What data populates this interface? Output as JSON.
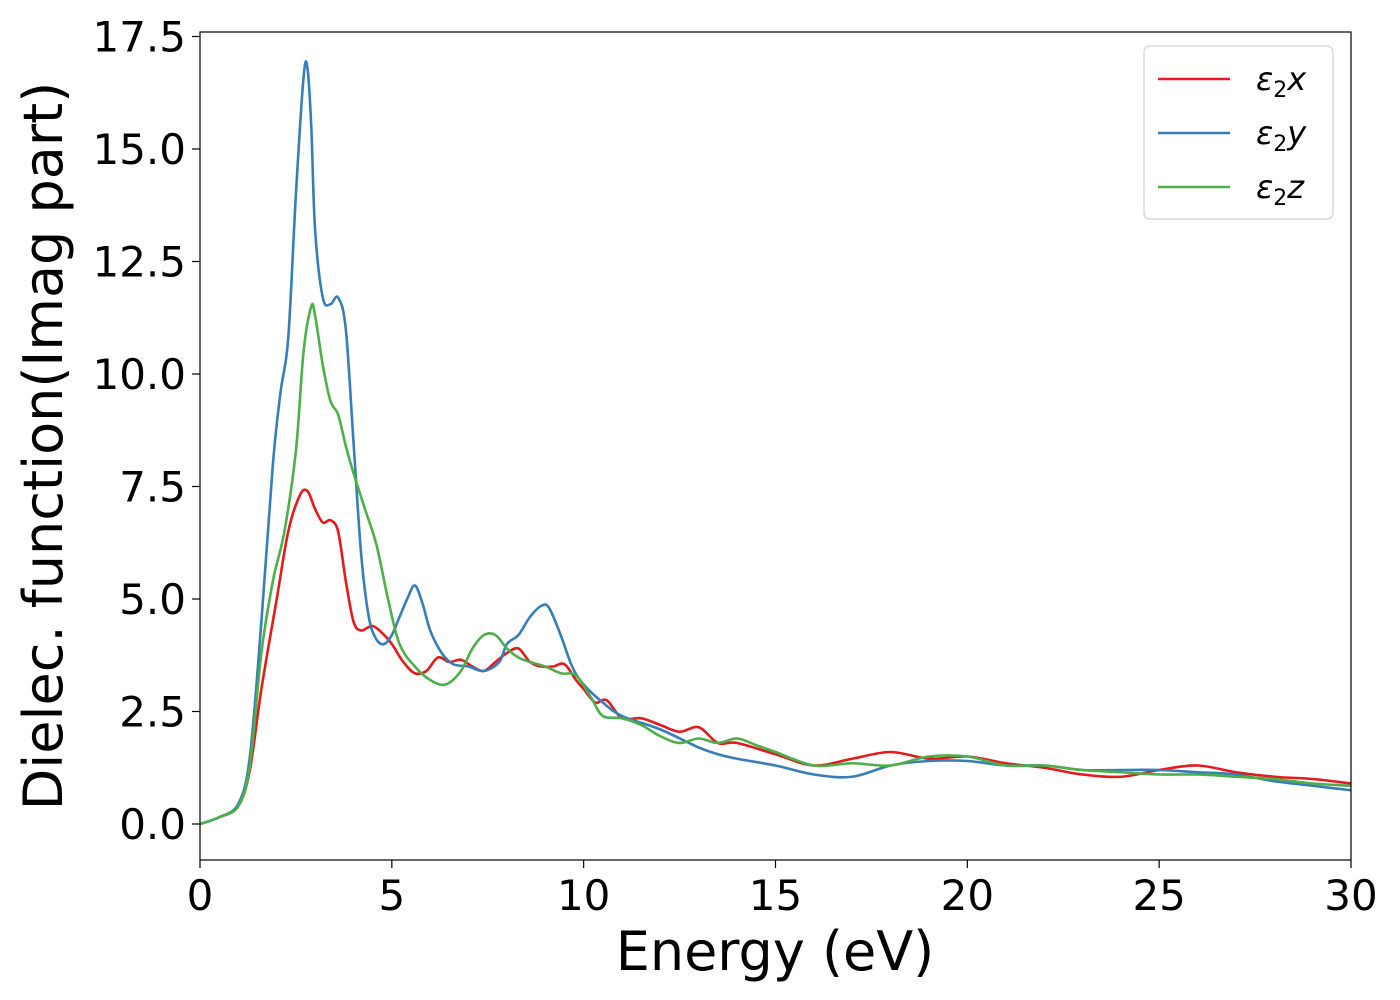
{
  "chart_data": {
    "type": "line",
    "title": "",
    "xlabel": "Energy (eV)",
    "ylabel": "Dielec. function(Imag part)",
    "xlim": [
      0,
      30
    ],
    "ylim": [
      -0.8,
      17.6
    ],
    "xticks": [
      0,
      5,
      10,
      15,
      20,
      25,
      30
    ],
    "xtick_labels": [
      "0",
      "5",
      "10",
      "15",
      "20",
      "25",
      "30"
    ],
    "yticks": [
      0,
      2.5,
      5,
      7.5,
      10,
      12.5,
      15,
      17.5
    ],
    "ytick_labels": [
      "0.0",
      "2.5",
      "5.0",
      "7.5",
      "10.0",
      "12.5",
      "15.0",
      "17.5"
    ],
    "grid": false,
    "legend_position": "top-right",
    "series": [
      {
        "name": "ε₂x",
        "legend_label": {
          "base": "ε",
          "sub": "2",
          "suffix": "x"
        },
        "color": "#e41a1c",
        "x": [
          0,
          0.5,
          1.0,
          1.3,
          1.6,
          2.0,
          2.3,
          2.6,
          2.8,
          3.0,
          3.2,
          3.4,
          3.6,
          3.8,
          4.0,
          4.2,
          4.5,
          4.8,
          5.0,
          5.3,
          5.6,
          5.9,
          6.2,
          6.5,
          6.8,
          7.1,
          7.4,
          7.7,
          8.0,
          8.3,
          8.6,
          8.9,
          9.2,
          9.5,
          9.8,
          10.0,
          10.3,
          10.6,
          11.0,
          11.5,
          12.0,
          12.5,
          13.0,
          13.5,
          14.0,
          15.0,
          16.0,
          17.0,
          18.0,
          19.0,
          20.0,
          21.0,
          22.0,
          23.0,
          24.0,
          25.0,
          26.0,
          27.0,
          28.0,
          29.0,
          30.0
        ],
        "y": [
          0,
          0.15,
          0.4,
          1.2,
          3.0,
          5.0,
          6.5,
          7.3,
          7.4,
          7.0,
          6.7,
          6.75,
          6.5,
          5.4,
          4.5,
          4.3,
          4.4,
          4.2,
          4.0,
          3.6,
          3.35,
          3.4,
          3.7,
          3.6,
          3.65,
          3.5,
          3.4,
          3.6,
          3.8,
          3.9,
          3.6,
          3.5,
          3.5,
          3.55,
          3.2,
          3.0,
          2.7,
          2.75,
          2.35,
          2.35,
          2.2,
          2.05,
          2.15,
          1.8,
          1.8,
          1.55,
          1.3,
          1.45,
          1.6,
          1.45,
          1.5,
          1.35,
          1.25,
          1.1,
          1.05,
          1.2,
          1.3,
          1.15,
          1.05,
          1.0,
          0.9
        ]
      },
      {
        "name": "ε₂y",
        "legend_label": {
          "base": "ε",
          "sub": "2",
          "suffix": "y"
        },
        "color": "#377eb8",
        "x": [
          0,
          0.5,
          1.0,
          1.3,
          1.6,
          1.9,
          2.1,
          2.3,
          2.5,
          2.7,
          2.8,
          2.9,
          3.0,
          3.2,
          3.4,
          3.6,
          3.8,
          4.0,
          4.2,
          4.4,
          4.6,
          4.8,
          5.0,
          5.2,
          5.4,
          5.6,
          5.8,
          6.0,
          6.3,
          6.6,
          7.0,
          7.4,
          7.8,
          8.0,
          8.3,
          8.6,
          8.9,
          9.1,
          9.4,
          9.7,
          10.0,
          10.5,
          11.0,
          12.0,
          13.0,
          13.5,
          14.0,
          15.0,
          16.0,
          17.0,
          18.0,
          19.0,
          20.0,
          21.0,
          22.0,
          23.0,
          24.0,
          25.0,
          26.0,
          27.0,
          28.0,
          29.0,
          30.0
        ],
        "y": [
          0,
          0.15,
          0.45,
          1.5,
          4.5,
          8.0,
          9.6,
          10.8,
          14.0,
          16.6,
          16.8,
          15.5,
          13.2,
          11.7,
          11.55,
          11.7,
          11.0,
          8.5,
          6.0,
          4.6,
          4.1,
          4.0,
          4.2,
          4.6,
          5.0,
          5.3,
          4.9,
          4.3,
          3.8,
          3.55,
          3.5,
          3.4,
          3.6,
          4.0,
          4.2,
          4.6,
          4.85,
          4.8,
          4.2,
          3.5,
          3.1,
          2.7,
          2.4,
          2.1,
          1.7,
          1.55,
          1.45,
          1.3,
          1.1,
          1.05,
          1.3,
          1.4,
          1.4,
          1.3,
          1.3,
          1.2,
          1.2,
          1.2,
          1.15,
          1.1,
          0.95,
          0.85,
          0.75
        ]
      },
      {
        "name": "ε₂z",
        "legend_label": {
          "base": "ε",
          "sub": "2",
          "suffix": "z"
        },
        "color": "#4daf4a",
        "x": [
          0,
          0.5,
          1.0,
          1.3,
          1.6,
          1.9,
          2.2,
          2.5,
          2.7,
          2.9,
          3.0,
          3.2,
          3.4,
          3.6,
          3.8,
          4.0,
          4.3,
          4.6,
          4.9,
          5.2,
          5.6,
          6.0,
          6.4,
          6.8,
          7.1,
          7.4,
          7.7,
          8.0,
          8.3,
          8.6,
          9.0,
          9.4,
          9.8,
          10.2,
          10.5,
          11.0,
          11.5,
          12.0,
          12.5,
          13.0,
          13.5,
          14.0,
          14.5,
          15.0,
          16.0,
          17.0,
          18.0,
          19.0,
          20.0,
          21.0,
          22.0,
          23.0,
          24.0,
          25.0,
          26.0,
          27.0,
          28.0,
          29.0,
          30.0
        ],
        "y": [
          0,
          0.15,
          0.4,
          1.3,
          3.8,
          5.4,
          6.5,
          8.3,
          10.5,
          11.5,
          11.3,
          10.2,
          9.4,
          9.1,
          8.4,
          7.8,
          7.0,
          6.2,
          5.0,
          4.0,
          3.5,
          3.2,
          3.1,
          3.4,
          3.9,
          4.2,
          4.2,
          3.9,
          3.7,
          3.6,
          3.5,
          3.35,
          3.3,
          2.8,
          2.4,
          2.35,
          2.2,
          1.95,
          1.8,
          1.9,
          1.8,
          1.9,
          1.75,
          1.6,
          1.3,
          1.35,
          1.3,
          1.5,
          1.5,
          1.3,
          1.3,
          1.2,
          1.15,
          1.1,
          1.1,
          1.05,
          1.0,
          0.9,
          0.85
        ]
      }
    ]
  }
}
